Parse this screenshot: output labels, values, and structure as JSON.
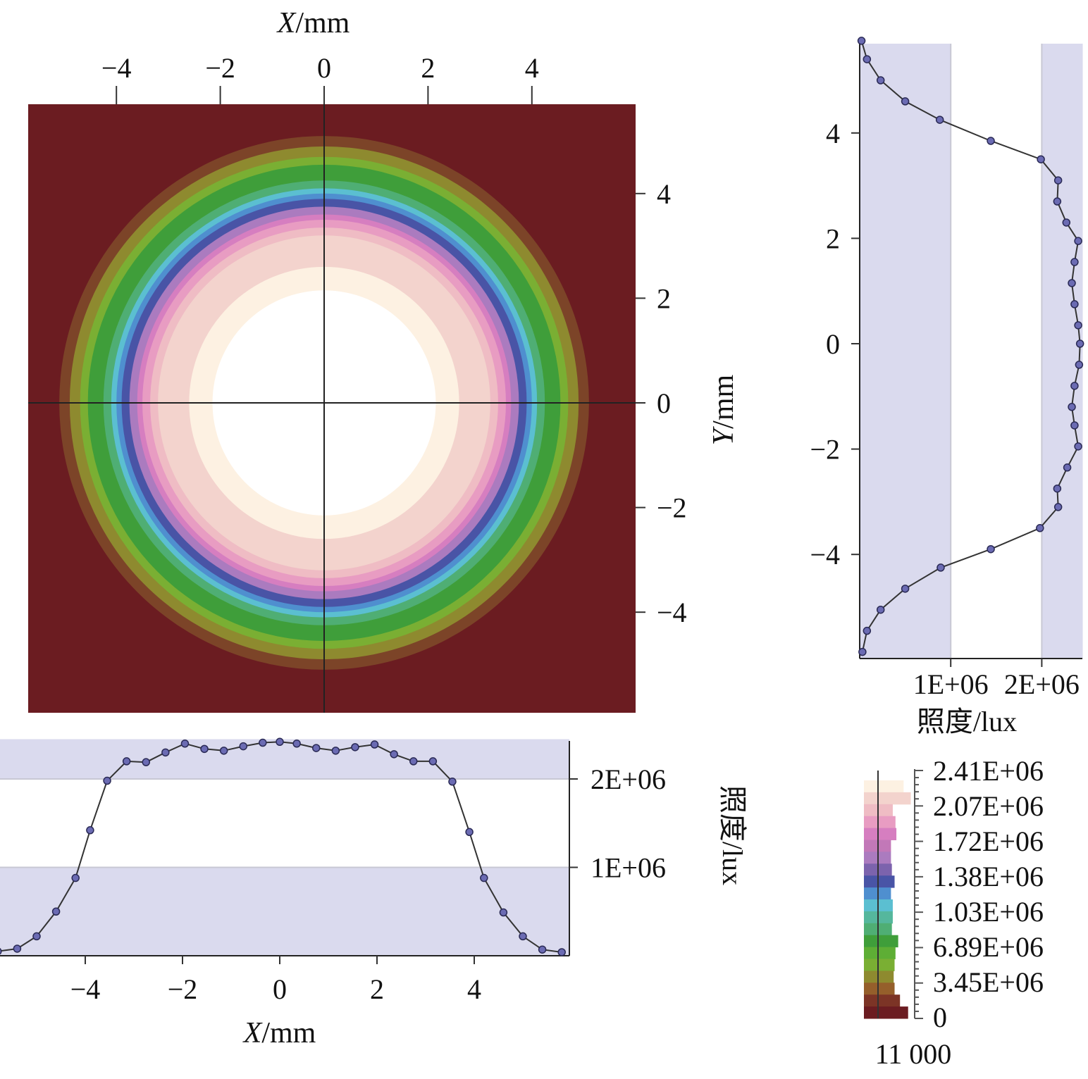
{
  "colors": {
    "background_outer": "#6b1c21",
    "band_fill": "#dadaee",
    "curve_line": "#333333",
    "marker_fill": "#6b6bb3",
    "marker_stroke": "#2a2a55",
    "crosshair": "#222222"
  },
  "chart_data": [
    {
      "type": "heatmap",
      "xlabel": "X/mm",
      "ylabel": "Y/mm",
      "x_axis_position": "top",
      "y_axis_position": "right",
      "xlim": [
        -5.7,
        5.7
      ],
      "ylim": [
        -5.7,
        5.7
      ],
      "x_ticks": [
        -4,
        -2,
        0,
        2,
        4
      ],
      "y_ticks": [
        4,
        2,
        0,
        -2,
        -4
      ],
      "x_tick_labels": [
        "−4",
        "−2",
        "0",
        "2",
        "4"
      ],
      "y_tick_labels": [
        "4",
        "2",
        "0",
        "−2",
        "−4"
      ],
      "crosshair_at": [
        0,
        0
      ],
      "pattern": "concentric circular illuminance spot, highest at center",
      "contour_bands": [
        {
          "color": "#ffffff",
          "radius_mm": 2.15
        },
        {
          "color": "#fdf1e2",
          "radius_mm": 2.6
        },
        {
          "color": "#f3d3cd",
          "radius_mm": 3.2
        },
        {
          "color": "#efbcc4",
          "radius_mm": 3.35
        },
        {
          "color": "#e89cc2",
          "radius_mm": 3.5
        },
        {
          "color": "#d67ec0",
          "radius_mm": 3.6
        },
        {
          "color": "#ab7bbf",
          "radius_mm": 3.75
        },
        {
          "color": "#4954a6",
          "radius_mm": 3.9
        },
        {
          "color": "#4f8fcf",
          "radius_mm": 4.0
        },
        {
          "color": "#5bbfd1",
          "radius_mm": 4.1
        },
        {
          "color": "#4fae74",
          "radius_mm": 4.25
        },
        {
          "color": "#3f9e3a",
          "radius_mm": 4.55
        },
        {
          "color": "#7aaf33",
          "radius_mm": 4.7
        },
        {
          "color": "#8e8a2f",
          "radius_mm": 4.9
        },
        {
          "color": "#7c4428",
          "radius_mm": 5.1
        },
        {
          "color": "#6b1c21",
          "radius_mm": 99
        }
      ]
    },
    {
      "type": "line",
      "xlabel": "X/mm",
      "ylabel": "照度/lux",
      "xlim": [
        -5.8,
        5.8
      ],
      "ylim": [
        0,
        2450000
      ],
      "x_ticks": [
        -4,
        -2,
        0,
        2,
        4
      ],
      "x_tick_labels": [
        "−4",
        "−2",
        "0",
        "2",
        "4"
      ],
      "y_ticks": [
        2000000,
        1000000
      ],
      "y_tick_labels": [
        "2E+06",
        "1E+06"
      ],
      "bands": [
        [
          0,
          1000000
        ],
        [
          2000000,
          2450000
        ]
      ],
      "x": [
        -5.8,
        -5.4,
        -5.0,
        -4.6,
        -4.2,
        -3.9,
        -3.55,
        -3.15,
        -2.75,
        -2.35,
        -1.95,
        -1.55,
        -1.15,
        -0.75,
        -0.35,
        0.0,
        0.35,
        0.75,
        1.15,
        1.55,
        1.95,
        2.35,
        2.75,
        3.15,
        3.55,
        3.9,
        4.2,
        4.6,
        5.0,
        5.4,
        5.8
      ],
      "y": [
        50000,
        80000,
        220000,
        500000,
        880000,
        1420000,
        1980000,
        2200000,
        2190000,
        2300000,
        2400000,
        2340000,
        2320000,
        2370000,
        2410000,
        2420000,
        2400000,
        2350000,
        2320000,
        2360000,
        2390000,
        2280000,
        2200000,
        2200000,
        1970000,
        1400000,
        880000,
        490000,
        220000,
        70000,
        40000
      ]
    },
    {
      "type": "line",
      "orientation": "vertical",
      "xlabel": "照度/lux",
      "ylabel": "",
      "xlim": [
        0,
        2450000
      ],
      "ylim": [
        -5.8,
        5.8
      ],
      "x_ticks": [
        1000000,
        2000000
      ],
      "x_tick_labels": [
        "1E+06",
        "2E+06"
      ],
      "y_ticks": [
        4,
        2,
        0,
        -2,
        -4
      ],
      "y_tick_labels": [
        "4",
        "2",
        "0",
        "−2",
        "−4"
      ],
      "bands": [
        [
          0,
          1000000
        ],
        [
          2000000,
          2450000
        ]
      ],
      "x": [
        20000,
        80000,
        230000,
        500000,
        880000,
        1440000,
        1990000,
        2180000,
        2170000,
        2270000,
        2400000,
        2360000,
        2330000,
        2360000,
        2400000,
        2420000,
        2410000,
        2360000,
        2330000,
        2360000,
        2400000,
        2280000,
        2170000,
        2180000,
        1980000,
        1440000,
        890000,
        500000,
        230000,
        80000,
        30000
      ],
      "y": [
        5.75,
        5.4,
        5.0,
        4.6,
        4.25,
        3.85,
        3.5,
        3.1,
        2.7,
        2.3,
        1.95,
        1.55,
        1.15,
        0.75,
        0.35,
        0.0,
        -0.4,
        -0.8,
        -1.2,
        -1.55,
        -1.95,
        -2.35,
        -2.75,
        -3.1,
        -3.5,
        -3.9,
        -4.25,
        -4.65,
        -5.05,
        -5.45,
        -5.85
      ]
    },
    {
      "type": "bar",
      "orientation": "horizontal",
      "role": "color legend",
      "tick_labels": [
        "2.41E+06",
        "2.07E+06",
        "1.72E+06",
        "1.38E+06",
        "1.03E+06",
        "6.89E+06",
        "3.45E+06",
        "0"
      ],
      "bottom_label": "11 000",
      "colors": [
        "#fdf1e2",
        "#f3d3cd",
        "#efbcc4",
        "#e89cc2",
        "#d67ec0",
        "#c278b8",
        "#ab7bbf",
        "#7c63ad",
        "#4954a6",
        "#4f8fcf",
        "#5bbfd1",
        "#55b79d",
        "#4fae74",
        "#3f9e3a",
        "#5eae35",
        "#7aaf33",
        "#8e8a2f",
        "#955f2b",
        "#7c3426",
        "#6b1c21"
      ],
      "values": [
        4400,
        5200,
        3200,
        3500,
        3600,
        3000,
        3000,
        3100,
        3400,
        3000,
        3200,
        3200,
        3100,
        3800,
        3500,
        3400,
        3300,
        3400,
        4000,
        4900
      ]
    }
  ]
}
